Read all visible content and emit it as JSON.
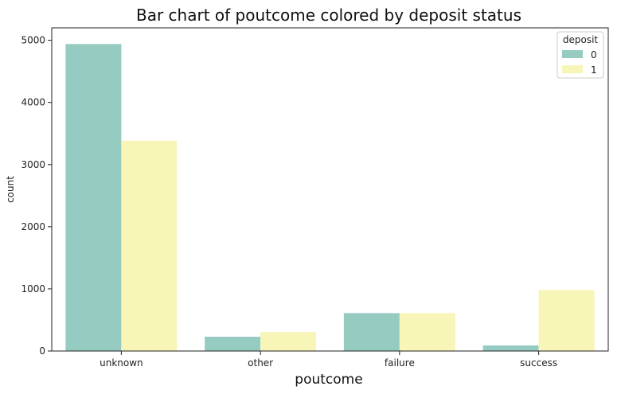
{
  "chart_data": {
    "type": "bar",
    "title": "Bar chart of poutcome colored by deposit status",
    "xlabel": "poutcome",
    "ylabel": "count",
    "categories": [
      "unknown",
      "other",
      "failure",
      "success"
    ],
    "series": [
      {
        "name": "0",
        "color": "#96cbc1",
        "values": [
          4940,
          230,
          610,
          90
        ]
      },
      {
        "name": "1",
        "color": "#f7f5b8",
        "values": [
          3385,
          305,
          610,
          980
        ]
      }
    ],
    "ylim": [
      0,
      5200
    ],
    "yticks": [
      0,
      1000,
      2000,
      3000,
      4000,
      5000
    ],
    "legend": {
      "title": "deposit",
      "position": "top-right"
    },
    "grid": false
  }
}
